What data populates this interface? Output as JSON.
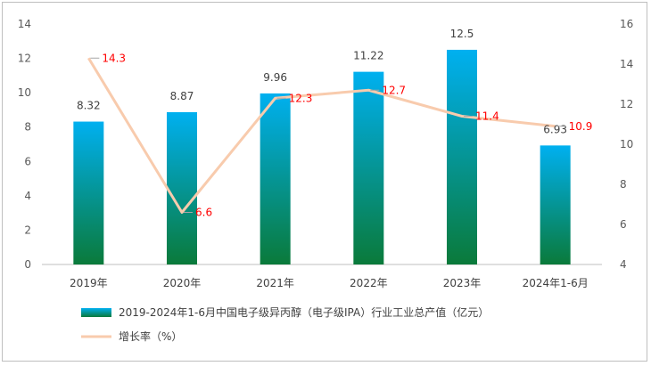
{
  "chart_data": {
    "type": "bar+line",
    "categories": [
      "2019年",
      "2020年",
      "2021年",
      "2022年",
      "2023年",
      "2024年1-6月"
    ],
    "series": [
      {
        "name": "2019-2024年1-6月中国电子级异丙醇（电子级IPA）行业工业总产值（亿元）",
        "type": "bar",
        "axis": "left",
        "values": [
          8.32,
          8.87,
          9.96,
          11.22,
          12.5,
          6.93
        ],
        "labels": [
          "8.32",
          "8.87",
          "9.96",
          "11.22",
          "12.5",
          "6.93"
        ]
      },
      {
        "name": "增长率（%）",
        "type": "line",
        "axis": "right",
        "values": [
          14.3,
          6.6,
          12.3,
          12.7,
          11.4,
          10.9
        ],
        "labels": [
          "14.3",
          "6.6",
          "12.3",
          "12.7",
          "11.4",
          "10.9"
        ]
      }
    ],
    "y_left": {
      "min": 0,
      "max": 14,
      "ticks": [
        0,
        2,
        4,
        6,
        8,
        10,
        12,
        14
      ]
    },
    "y_right": {
      "min": 4,
      "max": 16,
      "ticks": [
        4,
        6,
        8,
        10,
        12,
        14,
        16
      ]
    },
    "grid": false,
    "legend_position": "bottom-left",
    "colors": {
      "bar_top": "#00b0f0",
      "bar_bottom": "#0a7a3a",
      "line": "#f8cbad",
      "line_label": "#ff0000",
      "text": "#404040",
      "axis": "#bfbfbf"
    }
  }
}
